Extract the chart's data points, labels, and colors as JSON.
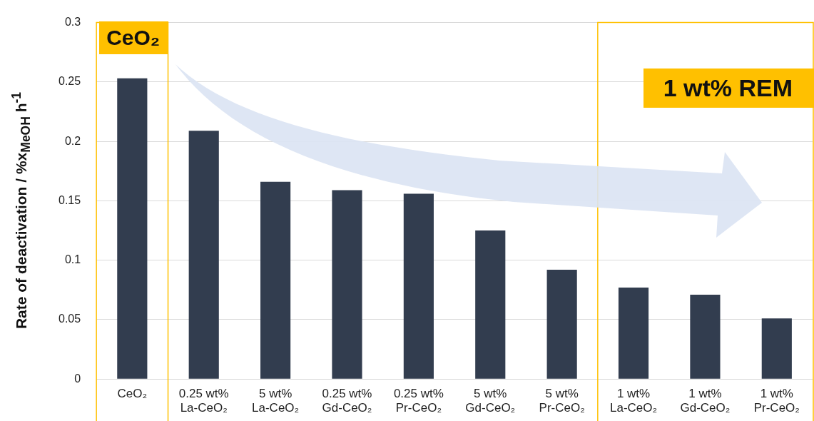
{
  "chart_data": {
    "type": "bar",
    "ylabel": "Rate of deactivation / %x$_{MeOH}$ h$^{-1}$",
    "categories": [
      "CeO₂",
      "0.25 wt% La-CeO₂",
      "5 wt% La-CeO₂",
      "0.25 wt% Gd-CeO₂",
      "0.25 wt% Pr-CeO₂",
      "5 wt% Gd-CeO₂",
      "5 wt% Pr-CeO₂",
      "1 wt% La-CeO₂",
      "1 wt% Gd-CeO₂",
      "1 wt% Pr-CeO₂"
    ],
    "values": [
      0.253,
      0.209,
      0.166,
      0.159,
      0.156,
      0.125,
      0.092,
      0.077,
      0.071,
      0.051
    ],
    "color": "#323d4f",
    "ylim": [
      0,
      0.3
    ],
    "yticks": [
      0,
      0.05,
      0.1,
      0.15,
      0.2,
      0.25,
      0.3
    ],
    "grid": "y",
    "bands": [
      {
        "axis": "x",
        "from": "CeO₂",
        "to": "CeO₂",
        "color": "#ffc000"
      },
      {
        "axis": "x",
        "from": "1 wt% La-CeO₂",
        "to": "1 wt% Pr-CeO₂",
        "color": "#ffc000"
      }
    ],
    "annotations": [
      "CeO₂",
      "1 wt% REM"
    ]
  }
}
